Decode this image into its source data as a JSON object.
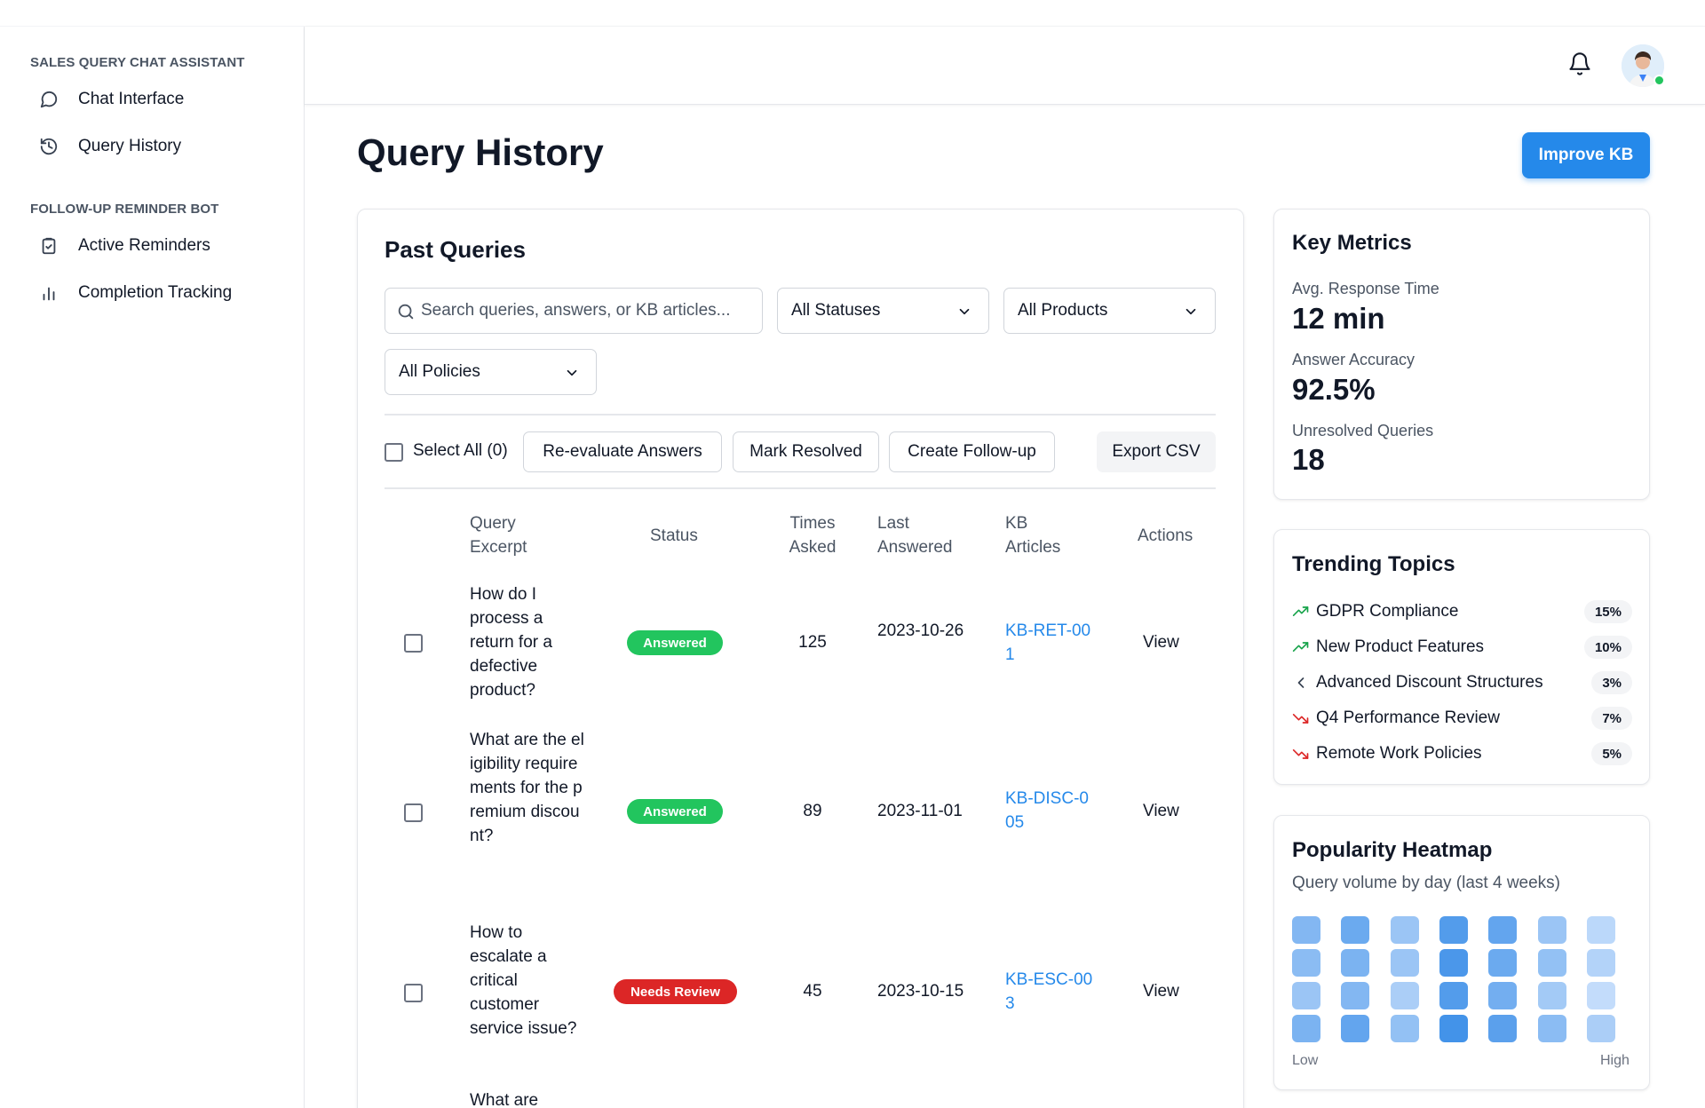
{
  "sidebar": {
    "sections": [
      {
        "title": "SALES QUERY CHAT ASSISTANT",
        "items": [
          {
            "label": "Chat Interface",
            "icon": "chat-bubble-icon"
          },
          {
            "label": "Query History",
            "icon": "history-icon"
          }
        ]
      },
      {
        "title": "FOLLOW-UP REMINDER BOT",
        "items": [
          {
            "label": "Active Reminders",
            "icon": "clipboard-check-icon"
          },
          {
            "label": "Completion Tracking",
            "icon": "bar-chart-icon"
          }
        ]
      }
    ]
  },
  "header": {
    "notification_icon": "bell-icon",
    "avatar_status": "online"
  },
  "page": {
    "title": "Query History",
    "primary_button": "Improve KB"
  },
  "past_queries": {
    "title": "Past Queries",
    "search_placeholder": "Search queries, answers, or KB articles...",
    "filters": {
      "status": "All Statuses",
      "product": "All Products",
      "policy": "All Policies"
    },
    "bulk_actions": {
      "select_all": "Select All (0)",
      "reevaluate": "Re-evaluate Answers",
      "mark_resolved": "Mark Resolved",
      "create_followup": "Create Follow-up",
      "export": "Export CSV"
    },
    "columns": {
      "excerpt": "Query Excerpt",
      "status": "Status",
      "times": "Times Asked",
      "last": "Last Answered",
      "kb": "KB Articles",
      "actions": "Actions"
    },
    "rows": [
      {
        "excerpt": "How do I process a return for a defective product?",
        "status": "Answered",
        "times": "125",
        "last": "2023-10-26",
        "kb": "KB-RET-001",
        "action": "View"
      },
      {
        "excerpt": "What are the eligibility requirements for the premium discount?",
        "status": "Answered",
        "times": "89",
        "last": "2023-11-01",
        "kb": "KB-DISC-005",
        "action": "View"
      },
      {
        "excerpt": "How to escalate a critical customer service issue?",
        "status": "Needs Review",
        "times": "45",
        "last": "2023-10-15",
        "kb": "KB-ESC-003",
        "action": "View"
      },
      {
        "excerpt": "What are",
        "status": "",
        "times": "",
        "last": "",
        "kb": "",
        "action": ""
      }
    ]
  },
  "metrics": {
    "title": "Key Metrics",
    "items": [
      {
        "label": "Avg. Response Time",
        "value": "12 min"
      },
      {
        "label": "Answer Accuracy",
        "value": "92.5%"
      },
      {
        "label": "Unresolved Queries",
        "value": "18"
      }
    ]
  },
  "trending": {
    "title": "Trending Topics",
    "items": [
      {
        "label": "GDPR Compliance",
        "pct": "15%",
        "trend": "up"
      },
      {
        "label": "New Product Features",
        "pct": "10%",
        "trend": "up"
      },
      {
        "label": "Advanced Discount Structures",
        "pct": "3%",
        "trend": "flat"
      },
      {
        "label": "Q4 Performance Review",
        "pct": "7%",
        "trend": "down"
      },
      {
        "label": "Remote Work Policies",
        "pct": "5%",
        "trend": "down"
      }
    ]
  },
  "heatmap": {
    "title": "Popularity Heatmap",
    "subtitle": "Query volume by day (last 4 weeks)",
    "low_label": "Low",
    "high_label": "High",
    "levels": [
      [
        0.55,
        0.7,
        0.4,
        0.85,
        0.75,
        0.4,
        0.2
      ],
      [
        0.5,
        0.6,
        0.4,
        0.9,
        0.7,
        0.45,
        0.25
      ],
      [
        0.4,
        0.55,
        0.3,
        0.85,
        0.65,
        0.35,
        0.15
      ],
      [
        0.6,
        0.75,
        0.45,
        0.95,
        0.8,
        0.5,
        0.3
      ]
    ],
    "colors": {
      "low": "#dbeafe",
      "high": "#3b8ee8"
    }
  },
  "colors": {
    "accent": "#2589ea",
    "answered": "#22c55e",
    "needs_review": "#dc2626",
    "trend_up": "#16a34a",
    "trend_down": "#dc2626"
  }
}
